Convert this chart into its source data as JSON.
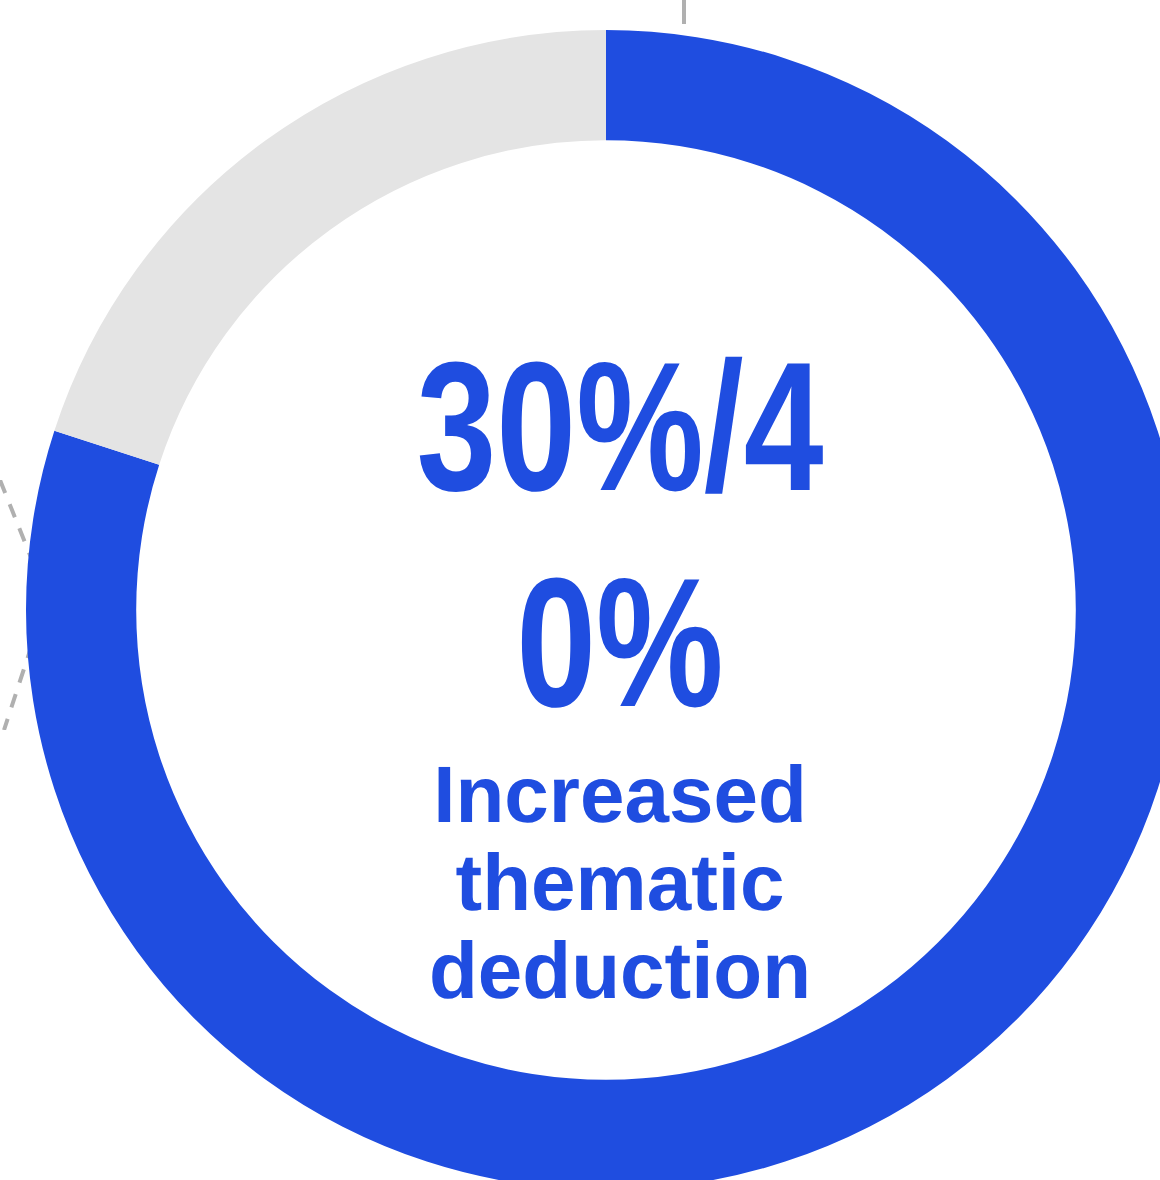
{
  "chart_data": {
    "type": "donut",
    "title": "30%/40%",
    "subtitle": "Increased thematic deduction",
    "categories": [
      null,
      null
    ],
    "values": [
      80,
      20
    ],
    "colors": [
      "#1f4de0",
      "#e4e4e4"
    ],
    "legend": false
  }
}
